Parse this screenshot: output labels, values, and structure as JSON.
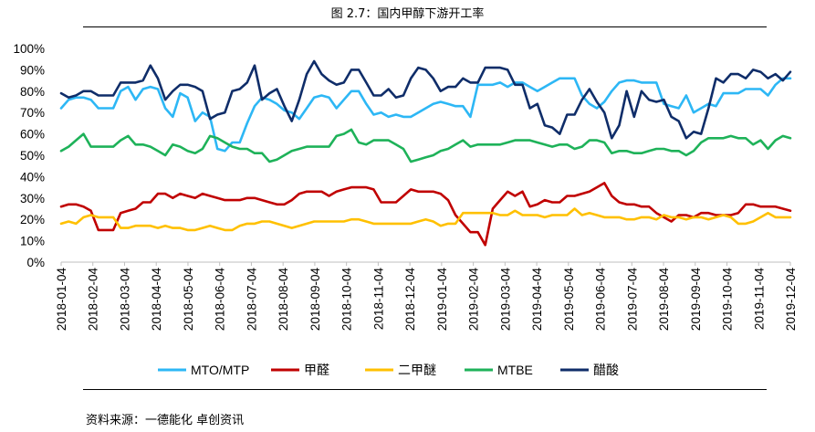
{
  "title": "图 2.7：国内甲醇下游开工率",
  "source": "资料来源：一德能化 卓创资讯",
  "chart_data": {
    "type": "line",
    "title": "图 2.7：国内甲醇下游开工率",
    "ylim": [
      0,
      100
    ],
    "y_ticks": [
      "0%",
      "10%",
      "20%",
      "30%",
      "40%",
      "50%",
      "60%",
      "70%",
      "80%",
      "90%",
      "100%"
    ],
    "x_ticks": [
      "2018-01-04",
      "2018-02-04",
      "2018-03-04",
      "2018-04-04",
      "2018-05-04",
      "2018-06-04",
      "2018-07-04",
      "2018-08-04",
      "2018-09-04",
      "2018-10-04",
      "2018-11-04",
      "2018-12-04",
      "2019-01-04",
      "2019-02-04",
      "2019-03-04",
      "2019-04-04",
      "2019-05-04",
      "2019-06-04",
      "2019-07-04",
      "2019-08-04",
      "2019-09-04",
      "2019-10-04",
      "2019-11-04",
      "2019-12-04"
    ],
    "legend_position": "bottom",
    "grid": false,
    "series": [
      {
        "name": "MTO/MTP",
        "color": "#2DB7F5",
        "values": [
          72,
          76,
          77,
          77,
          76,
          72,
          72,
          72,
          80,
          82,
          76,
          81,
          82,
          81,
          72,
          68,
          79,
          77,
          66,
          70,
          68,
          53,
          52,
          56,
          56,
          65,
          73,
          77,
          76,
          74,
          71,
          70,
          67,
          72,
          77,
          78,
          77,
          72,
          76,
          80,
          80,
          74,
          69,
          70,
          68,
          69,
          68,
          68,
          70,
          72,
          74,
          75,
          74,
          73,
          73,
          68,
          83,
          83,
          83,
          84,
          82,
          84,
          84,
          82,
          80,
          82,
          84,
          86,
          86,
          86,
          78,
          74,
          72,
          75,
          80,
          84,
          85,
          85,
          84,
          84,
          84,
          74,
          73,
          72,
          78,
          70,
          72,
          74,
          73,
          79,
          79,
          79,
          81,
          81,
          81,
          78,
          83,
          86,
          86
        ]
      },
      {
        "name": "甲醛",
        "color": "#C00000",
        "values": [
          26,
          27,
          27,
          26,
          24,
          15,
          15,
          15,
          23,
          24,
          25,
          28,
          28,
          32,
          32,
          30,
          32,
          31,
          30,
          32,
          31,
          30,
          29,
          29,
          29,
          30,
          30,
          29,
          28,
          27,
          27,
          29,
          32,
          33,
          33,
          33,
          31,
          33,
          34,
          35,
          35,
          35,
          34,
          28,
          28,
          28,
          31,
          34,
          33,
          33,
          33,
          32,
          29,
          22,
          18,
          14,
          14,
          8,
          25,
          29,
          33,
          31,
          33,
          26,
          27,
          29,
          28,
          28,
          31,
          31,
          32,
          33,
          35,
          37,
          31,
          28,
          27,
          27,
          26,
          26,
          23,
          21,
          19,
          22,
          22,
          21,
          23,
          23,
          22,
          22,
          22,
          23,
          27,
          27,
          26,
          26,
          26,
          25,
          24
        ]
      },
      {
        "name": "二甲醚",
        "color": "#FFC000",
        "values": [
          18,
          19,
          18,
          21,
          22,
          21,
          21,
          21,
          16,
          16,
          17,
          17,
          17,
          16,
          17,
          16,
          16,
          15,
          15,
          16,
          17,
          16,
          15,
          15,
          17,
          18,
          18,
          19,
          19,
          18,
          17,
          16,
          17,
          18,
          19,
          19,
          19,
          19,
          19,
          20,
          20,
          19,
          18,
          18,
          18,
          18,
          18,
          18,
          19,
          20,
          19,
          17,
          18,
          18,
          23,
          23,
          23,
          23,
          23,
          22,
          22,
          24,
          22,
          22,
          22,
          21,
          22,
          22,
          22,
          25,
          22,
          23,
          22,
          21,
          21,
          21,
          20,
          20,
          21,
          21,
          20,
          22,
          21,
          21,
          20,
          21,
          21,
          20,
          21,
          22,
          21,
          18,
          18,
          19,
          21,
          23,
          21,
          21,
          21
        ]
      },
      {
        "name": "MTBE",
        "color": "#1EB259",
        "values": [
          52,
          54,
          57,
          60,
          54,
          54,
          54,
          54,
          57,
          59,
          55,
          55,
          54,
          52,
          50,
          55,
          54,
          52,
          51,
          53,
          59,
          58,
          56,
          54,
          53,
          53,
          51,
          51,
          47,
          48,
          50,
          52,
          53,
          54,
          54,
          54,
          54,
          59,
          60,
          62,
          56,
          55,
          57,
          57,
          57,
          55,
          53,
          47,
          48,
          49,
          50,
          52,
          53,
          55,
          57,
          54,
          55,
          55,
          55,
          55,
          56,
          57,
          57,
          57,
          56,
          55,
          54,
          55,
          55,
          53,
          54,
          57,
          57,
          56,
          51,
          52,
          52,
          51,
          51,
          52,
          53,
          53,
          52,
          52,
          50,
          52,
          56,
          58,
          58,
          58,
          59,
          58,
          58,
          55,
          57,
          53,
          57,
          59,
          58
        ]
      },
      {
        "name": "醋酸",
        "color": "#0F2D69",
        "values": [
          79,
          77,
          78,
          80,
          80,
          78,
          78,
          78,
          84,
          84,
          84,
          85,
          92,
          86,
          76,
          80,
          83,
          83,
          82,
          80,
          67,
          69,
          70,
          80,
          81,
          84,
          92,
          76,
          79,
          81,
          73,
          66,
          76,
          88,
          94,
          88,
          85,
          83,
          84,
          90,
          90,
          84,
          78,
          78,
          81,
          77,
          78,
          86,
          91,
          90,
          86,
          80,
          82,
          82,
          86,
          84,
          84,
          91,
          91,
          91,
          90,
          83,
          83,
          72,
          74,
          64,
          63,
          60,
          69,
          69,
          76,
          81,
          75,
          70,
          58,
          64,
          80,
          68,
          80,
          76,
          75,
          76,
          68,
          66,
          58,
          61,
          60,
          72,
          86,
          84,
          88,
          88,
          86,
          90,
          89,
          86,
          88,
          85,
          89
        ]
      }
    ]
  }
}
